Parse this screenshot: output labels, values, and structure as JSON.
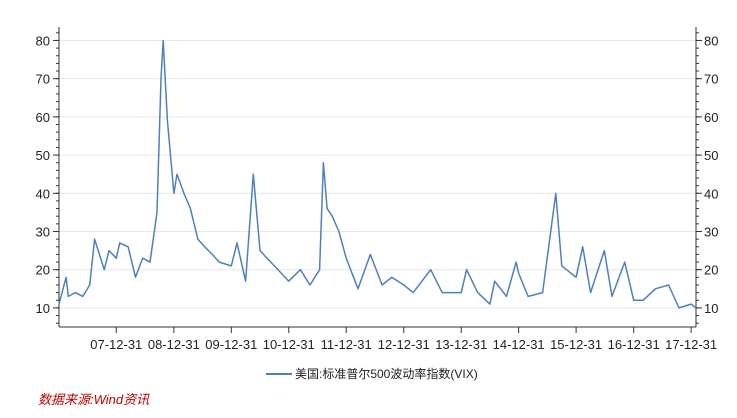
{
  "chart_data": {
    "type": "line",
    "title": "",
    "xlabel": "",
    "ylabel": "",
    "ylim": [
      5,
      83
    ],
    "yticks": [
      10,
      20,
      30,
      40,
      50,
      60,
      70,
      80
    ],
    "x_tick_labels": [
      "07-12-31",
      "08-12-31",
      "09-12-31",
      "10-12-31",
      "11-12-31",
      "12-12-31",
      "13-12-31",
      "14-12-31",
      "15-12-31",
      "16-12-31",
      "17-12-31"
    ],
    "x_tick_dates": [
      "2007-12-31",
      "2008-12-31",
      "2009-12-31",
      "2010-12-31",
      "2011-12-31",
      "2012-12-31",
      "2013-12-31",
      "2014-12-31",
      "2015-12-31",
      "2016-12-31",
      "2017-12-31"
    ],
    "xlim": [
      "2007-01-01",
      "2018-01-31"
    ],
    "grid": true,
    "dual_y_axis": true,
    "legend_position": "bottom",
    "series": [
      {
        "name": "美国:标准普尔500波动率指数(VIX)",
        "color": "#4f7fc0",
        "x": [
          "2007-01-01",
          "2007-02-15",
          "2007-03-01",
          "2007-04-15",
          "2007-06-01",
          "2007-07-15",
          "2007-08-15",
          "2007-09-15",
          "2007-10-15",
          "2007-11-15",
          "2007-12-31",
          "2008-01-22",
          "2008-03-15",
          "2008-05-01",
          "2008-06-15",
          "2008-08-01",
          "2008-09-15",
          "2008-10-10",
          "2008-10-24",
          "2008-11-20",
          "2008-12-31",
          "2009-01-20",
          "2009-03-05",
          "2009-04-15",
          "2009-06-01",
          "2009-07-15",
          "2009-09-01",
          "2009-10-15",
          "2009-12-31",
          "2010-02-05",
          "2010-04-01",
          "2010-05-20",
          "2010-07-01",
          "2010-08-15",
          "2010-10-01",
          "2010-12-31",
          "2011-03-15",
          "2011-05-15",
          "2011-07-15",
          "2011-08-08",
          "2011-09-01",
          "2011-10-03",
          "2011-11-15",
          "2011-12-31",
          "2012-03-15",
          "2012-06-01",
          "2012-08-15",
          "2012-10-15",
          "2012-12-31",
          "2013-03-01",
          "2013-06-20",
          "2013-09-01",
          "2013-12-31",
          "2014-02-03",
          "2014-04-15",
          "2014-07-01",
          "2014-08-01",
          "2014-10-15",
          "2014-12-15",
          "2014-12-31",
          "2015-03-01",
          "2015-06-01",
          "2015-08-24",
          "2015-10-01",
          "2015-12-31",
          "2016-02-11",
          "2016-04-01",
          "2016-06-27",
          "2016-08-15",
          "2016-11-04",
          "2016-12-31",
          "2017-03-01",
          "2017-05-18",
          "2017-08-10",
          "2017-10-15",
          "2017-12-31",
          "2018-01-31"
        ],
        "values": [
          11,
          18,
          13,
          14,
          13,
          16,
          28,
          24,
          20,
          25,
          23,
          27,
          26,
          18,
          23,
          22,
          35,
          70,
          80,
          59,
          40,
          45,
          40,
          36,
          28,
          26,
          24,
          22,
          21,
          27,
          17,
          45,
          25,
          23,
          21,
          17,
          20,
          16,
          20,
          48,
          36,
          34,
          30,
          23,
          15,
          24,
          16,
          18,
          16,
          14,
          20,
          14,
          14,
          20,
          14,
          11,
          17,
          13,
          22,
          19,
          13,
          14,
          40,
          21,
          18,
          26,
          14,
          25,
          13,
          22,
          12,
          12,
          15,
          16,
          10,
          11,
          10
        ]
      }
    ]
  },
  "source_note": "数据来源:Wind资讯"
}
